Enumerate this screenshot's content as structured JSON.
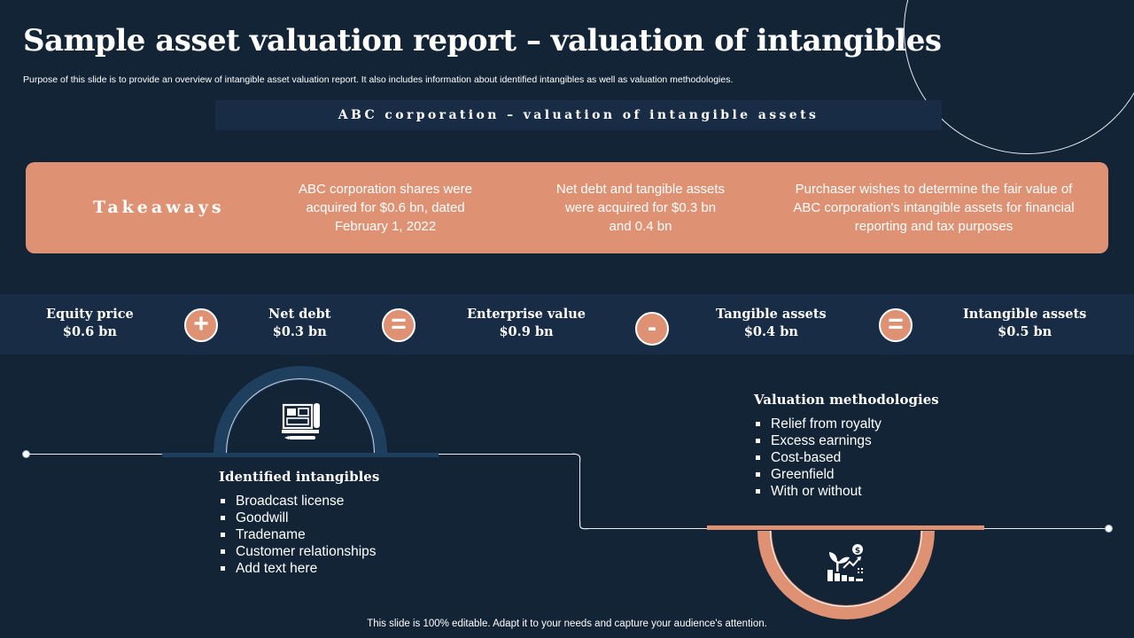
{
  "title": "Sample asset valuation report – valuation of intangibles",
  "subtitle": "Purpose of this slide is to provide an overview of intangible asset valuation report. It also includes information about identified intangibles as well as valuation methodologies.",
  "banner": "ABC corporation – valuation of intangible assets",
  "takeaways": {
    "heading": "Takeaways",
    "items": [
      "ABC corporation shares were acquired for $0.6 bn, dated February 1, 2022",
      "Net debt and tangible assets were acquired for $0.3 bn and 0.4 bn",
      "Purchaser wishes to determine the fair value of ABC corporation's intangible assets for financial reporting and tax purposes"
    ]
  },
  "equation": {
    "items": [
      {
        "label": "Equity price",
        "value": "$0.6 bn"
      },
      {
        "label": "Net debt",
        "value": "$0.3 bn"
      },
      {
        "label": "Enterprise value",
        "value": "$0.9 bn"
      },
      {
        "label": "Tangible assets",
        "value": "$0.4 bn"
      },
      {
        "label": "Intangible assets",
        "value": "$0.5 bn"
      }
    ],
    "operators": [
      "+",
      "=",
      "-",
      "="
    ]
  },
  "intangibles": {
    "title": "Identified intangibles",
    "icon": "blueprint-icon",
    "items": [
      "Broadcast license",
      "Goodwill",
      "Tradename",
      "Customer relationships",
      "Add text here"
    ]
  },
  "methodologies": {
    "title": "Valuation methodologies",
    "icon": "valuation-growth-icon",
    "items": [
      "Relief from royalty",
      "Excess earnings",
      "Cost-based",
      "Greenfield",
      "With or without"
    ]
  },
  "footer": "This slide is 100% editable. Adapt it to your needs and capture your audience's attention.",
  "colors": {
    "background": "#122436",
    "accent": "#df9174",
    "band": "#182d45",
    "arch": "#1f3f5e"
  }
}
